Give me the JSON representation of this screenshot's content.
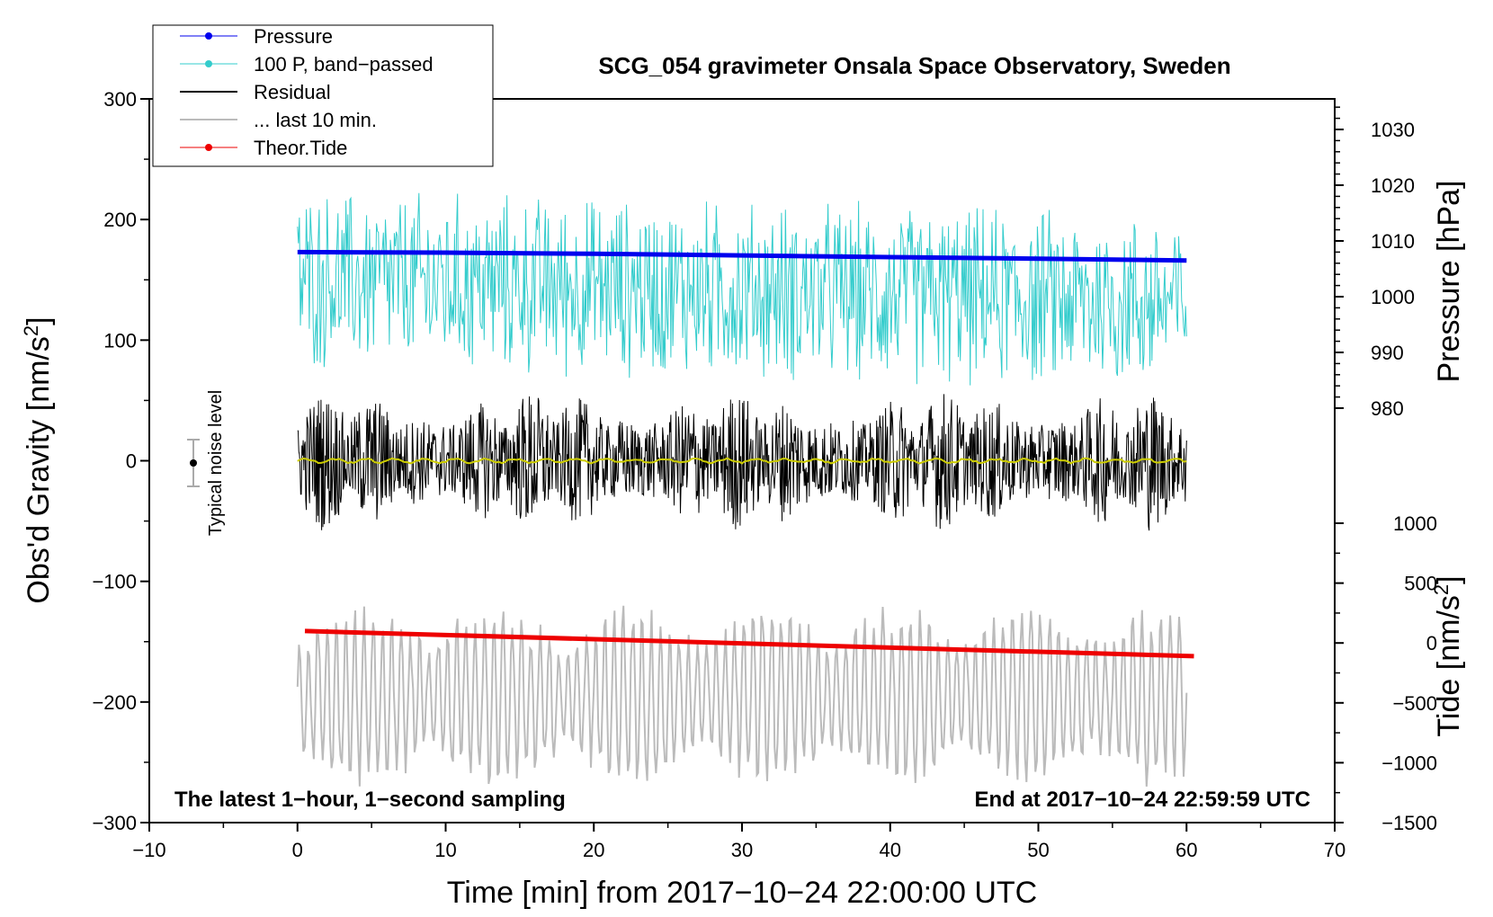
{
  "chart_data": {
    "type": "line",
    "title": "SCG_054 gravimeter Onsala Space Observatory, Sweden",
    "xlabel": "Time [min] from 2017−10−24 22:00:00 UTC",
    "xlim": [
      -10,
      70
    ],
    "x_ticks": [
      -10,
      0,
      10,
      20,
      30,
      40,
      50,
      60,
      70
    ],
    "x_tick_labels": [
      "−10",
      "0",
      "10",
      "20",
      "30",
      "40",
      "50",
      "60",
      "70"
    ],
    "left_axis": {
      "label": "Obs'd Gravity [nm/s",
      "label_sup": "2",
      "label_end": "]",
      "ylim": [
        -300,
        300
      ],
      "ticks": [
        300,
        200,
        100,
        0,
        -100,
        -200,
        -300
      ],
      "tick_labels": [
        "300",
        "200",
        "100",
        "0",
        "−100",
        "−200",
        "−300"
      ]
    },
    "right_axis_pressure": {
      "label": "Pressure [hPa]",
      "ticks": [
        1030,
        1020,
        1010,
        1000,
        990,
        980
      ],
      "tick_labels": [
        "1030",
        "1020",
        "1010",
        "1000",
        "990",
        "980"
      ]
    },
    "right_axis_tide": {
      "label": "Tide [nm/s",
      "label_sup": "2",
      "label_end": "]",
      "ticks": [
        1000,
        500,
        0,
        -500,
        -1000,
        -1500
      ],
      "tick_labels": [
        "1000",
        "500",
        "0",
        "−500",
        "−1000",
        "−1500"
      ]
    },
    "series": [
      {
        "name": "Pressure",
        "color": "#0000ee",
        "x": [
          0,
          10,
          20,
          30,
          40,
          50,
          60
        ],
        "values": [
          1008.0,
          1007.9,
          1007.7,
          1007.4,
          1007.1,
          1006.8,
          1006.5
        ],
        "axis": "pressure"
      },
      {
        "name": "100 P, band−passed",
        "color": "#33cccc",
        "x_range": [
          0,
          60
        ],
        "center": 1003,
        "amplitude": 15,
        "axis": "pressure"
      },
      {
        "name": "Residual",
        "color": "#000000",
        "x_range": [
          0,
          60
        ],
        "center": 0,
        "amplitude": 45,
        "axis": "gravity"
      },
      {
        "name": "... last 10 min.",
        "color": "#bbbbbb",
        "x_range": [
          0,
          60
        ],
        "center": -195,
        "amplitude": 60,
        "axis": "gravity"
      },
      {
        "name": "Theor.Tide",
        "color": "#ee0000",
        "x": [
          0.5,
          60.5
        ],
        "values": [
          100,
          -110
        ],
        "axis": "tide"
      }
    ],
    "residual_mean_color": "#cccc00",
    "noise_indicator": {
      "label": "Typical noise level",
      "x": -7,
      "y": 0,
      "err": 20
    },
    "annotations": {
      "bottom_left": "The latest 1−hour, 1−second sampling",
      "bottom_right": "End at 2017−10−24 22:59:59 UTC"
    },
    "legend": {
      "placement": "top-left",
      "entries": [
        "Pressure",
        "100 P, band−passed",
        "Residual",
        "... last 10 min.",
        "Theor.Tide"
      ]
    }
  }
}
